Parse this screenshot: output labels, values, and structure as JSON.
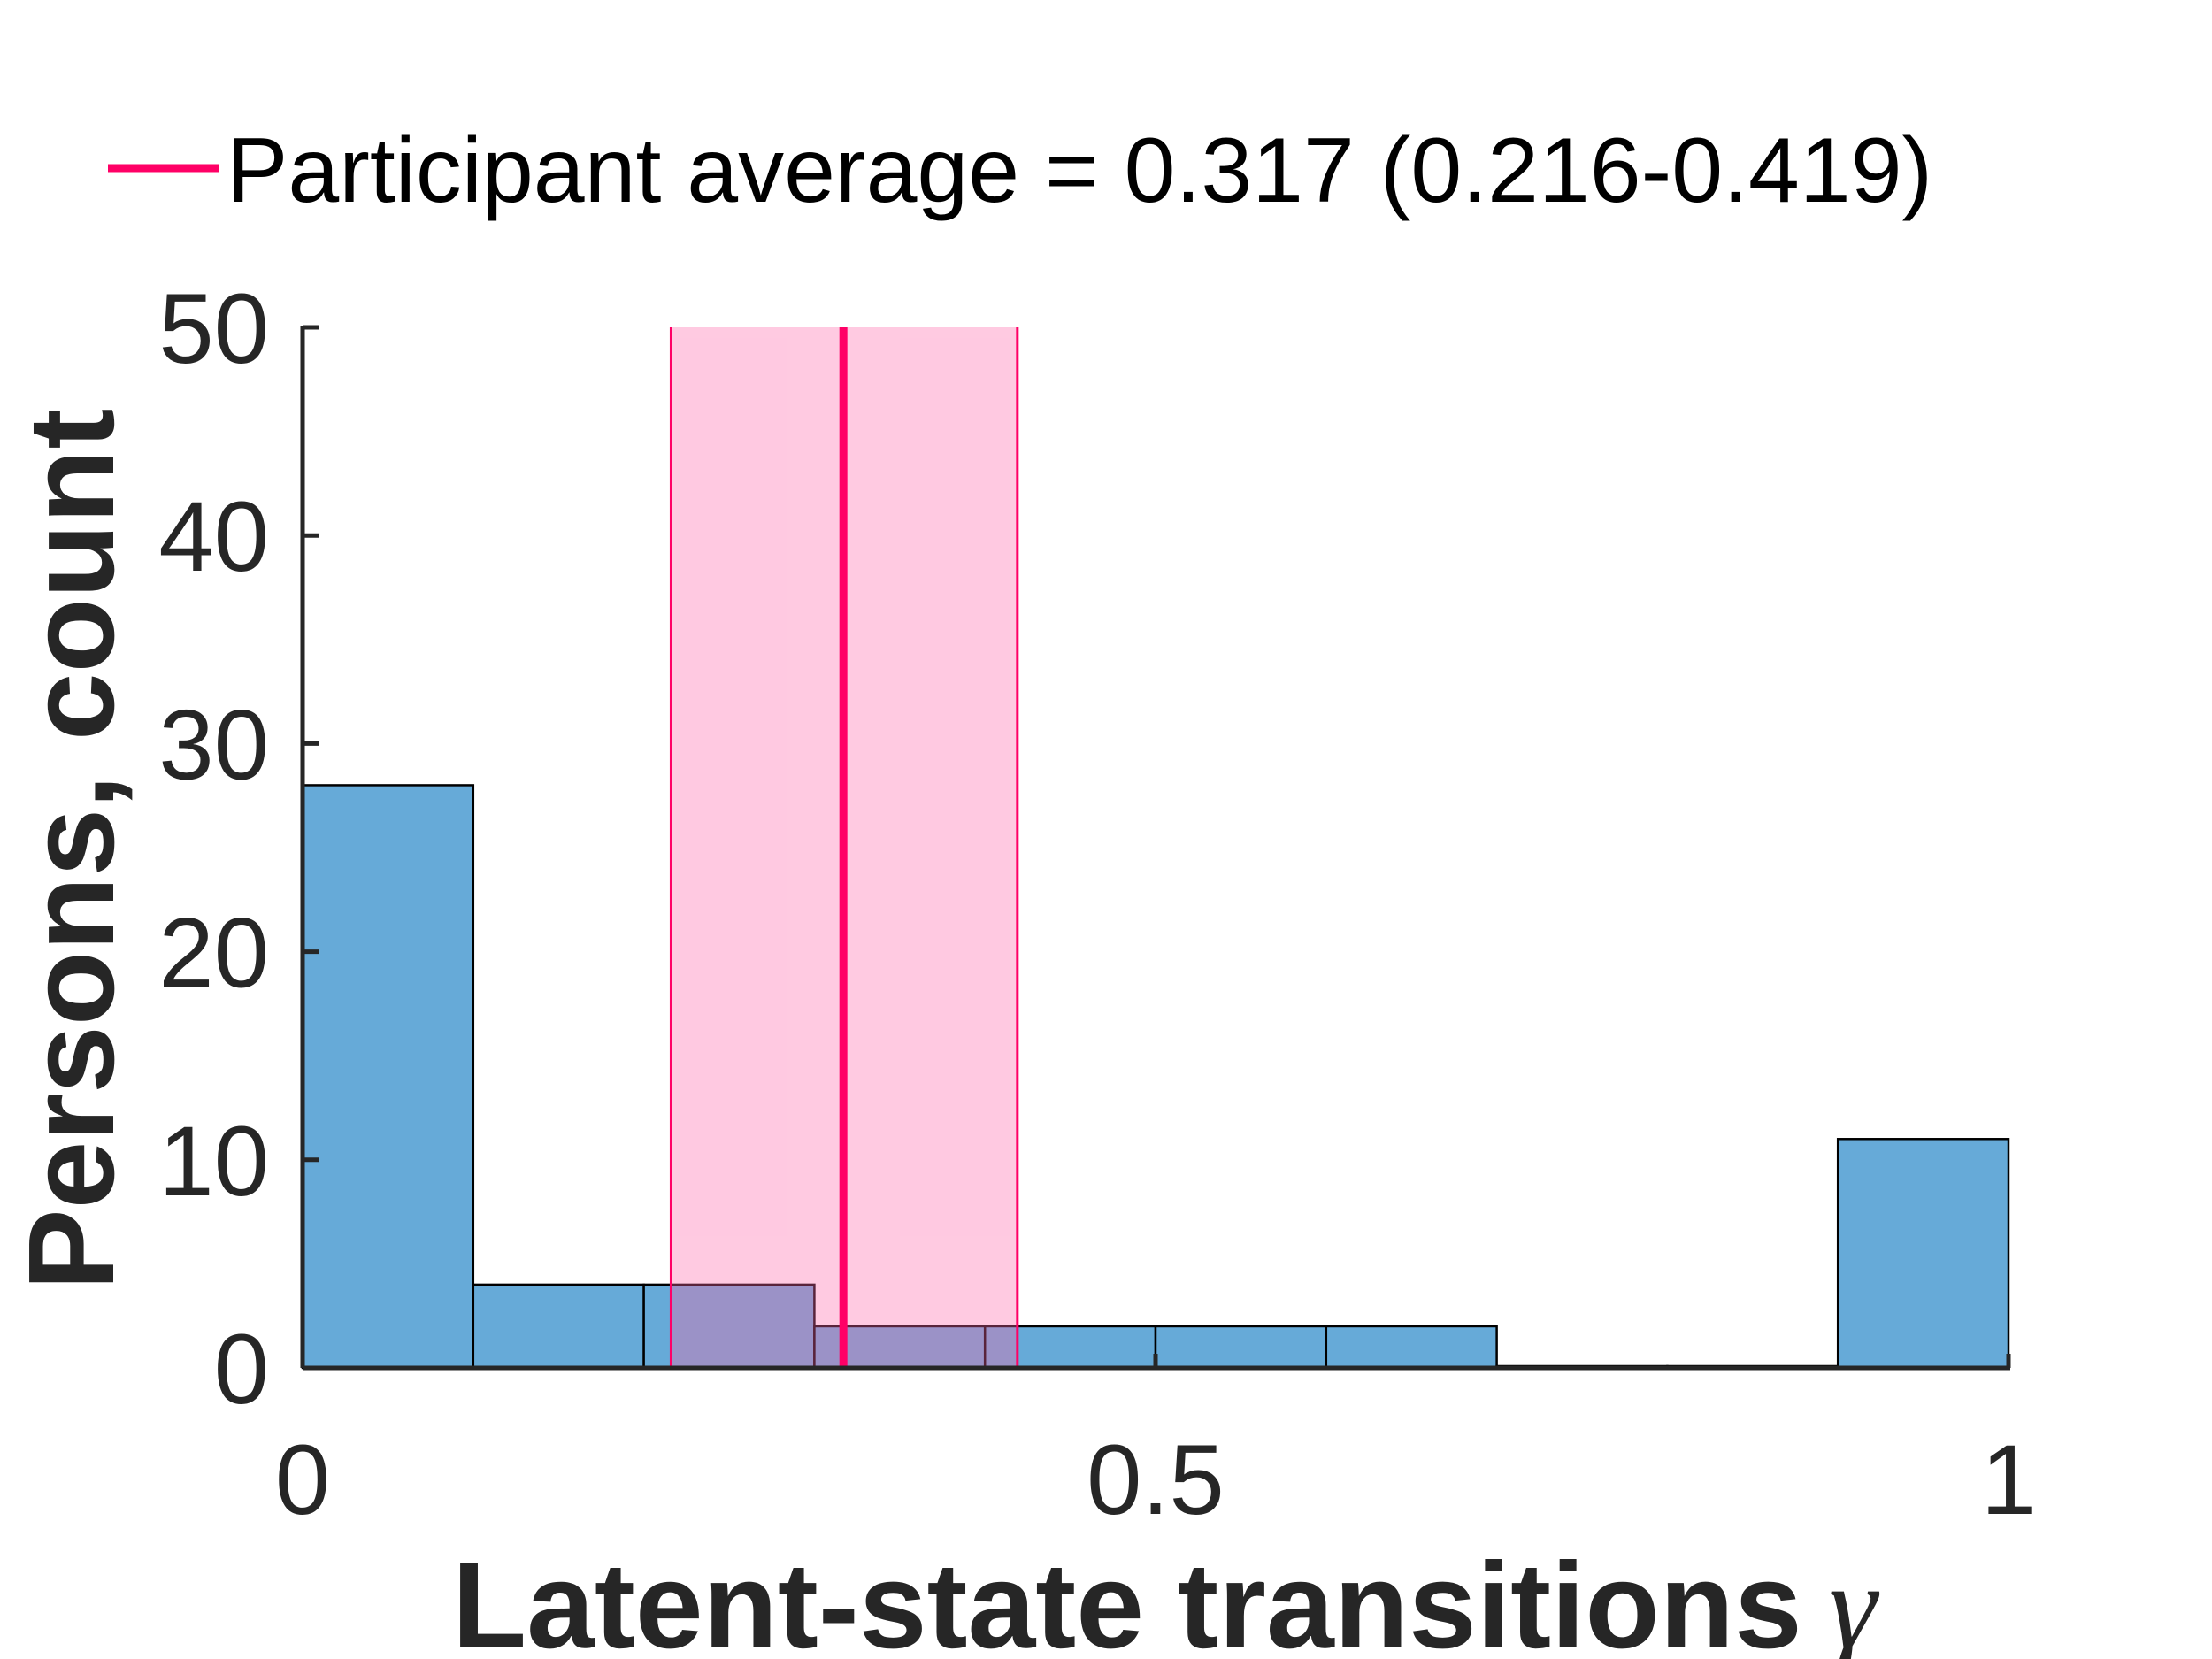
{
  "chart_data": {
    "type": "bar",
    "subtype": "histogram",
    "xlabel": "Latent-state transitions",
    "xlabel_symbol": "γ",
    "ylabel": "Persons, count",
    "xlim": [
      0,
      1
    ],
    "ylim": [
      0,
      50
    ],
    "xticks": [
      0,
      0.5,
      1
    ],
    "xtick_labels": [
      "0",
      "0.5",
      "1"
    ],
    "yticks": [
      0,
      10,
      20,
      30,
      40,
      50
    ],
    "ytick_labels": [
      "0",
      "10",
      "20",
      "30",
      "40",
      "50"
    ],
    "bin_edges": [
      0,
      0.1,
      0.2,
      0.3,
      0.4,
      0.5,
      0.6,
      0.7,
      0.8,
      0.9,
      1.0
    ],
    "counts": [
      28,
      4,
      4,
      2,
      2,
      2,
      2,
      0,
      0,
      11
    ],
    "bar_color": "#66aad8",
    "grid": false,
    "legend_position": "top",
    "reference": {
      "legend_label": "Participant average = 0.317 (0.216-0.419)",
      "mean": 0.317,
      "ci": [
        0.216,
        0.419
      ],
      "line_color": "#ff0066",
      "band_color": "#ff66aa"
    }
  }
}
